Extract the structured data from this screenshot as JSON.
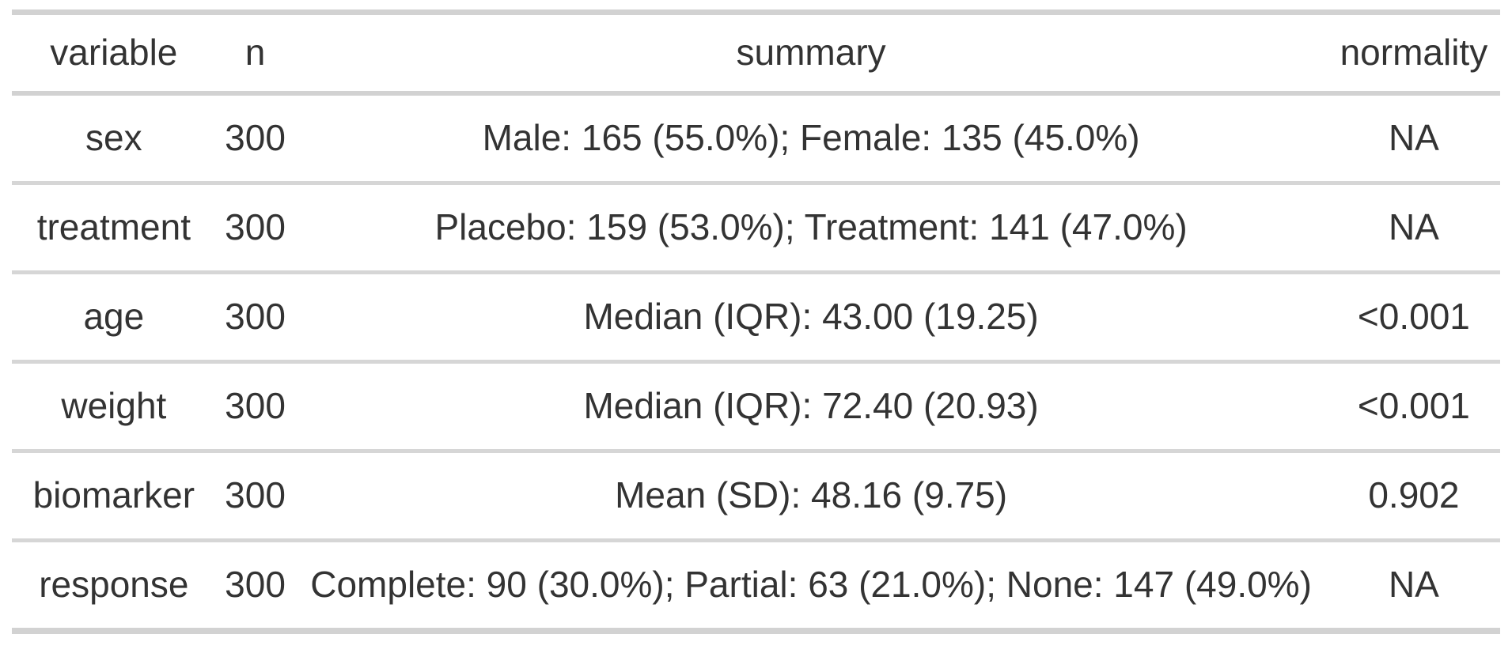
{
  "chart_data": {
    "type": "table",
    "title": "",
    "columns": [
      "variable",
      "n",
      "summary",
      "normality"
    ],
    "rows": [
      {
        "variable": "sex",
        "n": "300",
        "summary": "Male: 165 (55.0%); Female: 135 (45.0%)",
        "normality": "NA"
      },
      {
        "variable": "treatment",
        "n": "300",
        "summary": "Placebo: 159 (53.0%); Treatment: 141 (47.0%)",
        "normality": "NA"
      },
      {
        "variable": "age",
        "n": "300",
        "summary": "Median (IQR): 43.00 (19.25)",
        "normality": "<0.001"
      },
      {
        "variable": "weight",
        "n": "300",
        "summary": "Median (IQR): 72.40 (20.93)",
        "normality": "<0.001"
      },
      {
        "variable": "biomarker",
        "n": "300",
        "summary": "Mean (SD): 48.16 (9.75)",
        "normality": "0.902"
      },
      {
        "variable": "response",
        "n": "300",
        "summary": "Complete: 90 (30.0%); Partial: 63 (21.0%); None: 147 (49.0%)",
        "normality": "NA"
      }
    ],
    "layout": {
      "grid": "horizontal-rules-only",
      "alignment": "center",
      "legend": "none"
    }
  },
  "colors": {
    "text": "#333333",
    "rule": "#d4d4d4",
    "background": "#ffffff"
  }
}
